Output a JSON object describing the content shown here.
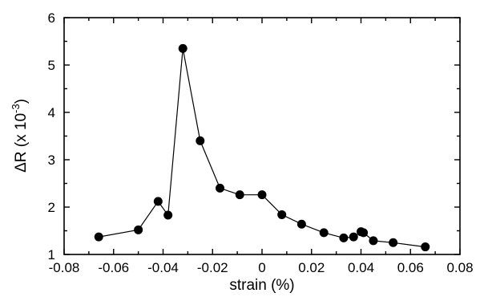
{
  "chart_data": {
    "type": "line",
    "title": "",
    "xlabel": "strain (%)",
    "ylabel": "ΔR (x 10-3)",
    "ylabel_parts": {
      "main": "ΔR (x 10",
      "exp": "-3",
      "close": ")"
    },
    "xlim": [
      -0.08,
      0.08
    ],
    "ylim": [
      1,
      6
    ],
    "xticks": [
      -0.08,
      -0.06,
      -0.04,
      -0.02,
      0,
      0.02,
      0.04,
      0.06,
      0.08
    ],
    "xtick_labels": [
      "-0.08",
      "-0.06",
      "-0.04",
      "-0.02",
      "0",
      "0.02",
      "0.04",
      "0.06",
      "0.08"
    ],
    "yticks": [
      1,
      2,
      3,
      4,
      5,
      6
    ],
    "ytick_labels": [
      "1",
      "2",
      "3",
      "4",
      "5",
      "6"
    ],
    "grid": false,
    "series": [
      {
        "marker": "filled-circle",
        "color": "#000000",
        "x": [
          -0.066,
          -0.05,
          -0.042,
          -0.038,
          -0.032,
          -0.025,
          -0.017,
          -0.009,
          0.0,
          0.008,
          0.016,
          0.025,
          0.033,
          0.037,
          0.04,
          0.041,
          0.045,
          0.053,
          0.066
        ],
        "y": [
          1.37,
          1.52,
          2.12,
          1.83,
          5.35,
          3.4,
          2.4,
          2.26,
          2.26,
          1.84,
          1.64,
          1.46,
          1.35,
          1.37,
          1.48,
          1.46,
          1.29,
          1.25,
          1.16
        ]
      }
    ]
  }
}
